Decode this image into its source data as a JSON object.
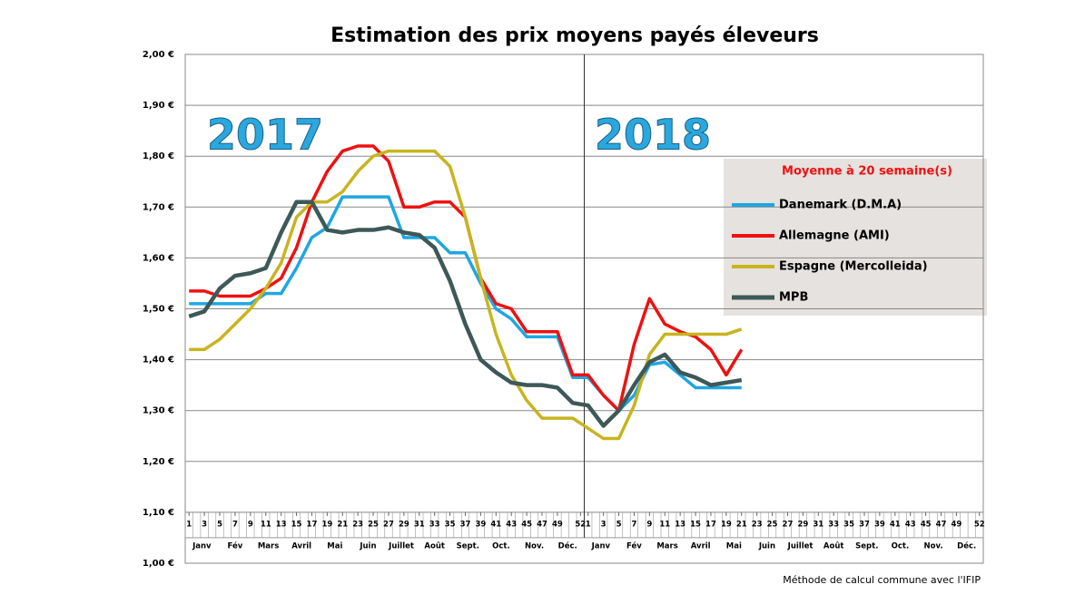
{
  "chart_data": {
    "type": "line",
    "title": "Estimation des prix moyens payés éleveurs",
    "annotations": [
      "2017",
      "2018"
    ],
    "legend_title": "Moyenne à  20 semaine(s)",
    "footnote": "Méthode de calcul commune avec l'IFIP",
    "months": [
      "Janv",
      "Fév",
      "Mars",
      "Avril",
      "Mai",
      "Juin",
      "Juillet",
      "Août",
      "Sept.",
      "Oct.",
      "Nov.",
      "Déc.",
      "Janv",
      "Fév",
      "Mars",
      "Avril",
      "Mai",
      "Juin",
      "Juillet",
      "Août",
      "Sept.",
      "Oct.",
      "Nov.",
      "Déc."
    ],
    "x": [
      1,
      3,
      5,
      7,
      9,
      11,
      13,
      15,
      17,
      19,
      21,
      23,
      25,
      27,
      29,
      31,
      33,
      35,
      37,
      39,
      41,
      43,
      45,
      47,
      49,
      51,
      53,
      55,
      57,
      59,
      61,
      63,
      65,
      67,
      69,
      71,
      73
    ],
    "series": [
      {
        "name": "Danemark (D.M.A)",
        "color": "#1ea7e1",
        "values": [
          1.51,
          1.51,
          1.51,
          1.51,
          1.51,
          1.53,
          1.53,
          1.58,
          1.64,
          1.66,
          1.72,
          1.72,
          1.72,
          1.72,
          1.64,
          1.64,
          1.64,
          1.61,
          1.61,
          1.55,
          1.5,
          1.48,
          1.445,
          1.445,
          1.445,
          1.365,
          1.365,
          1.33,
          1.3,
          1.33,
          1.39,
          1.395,
          1.37,
          1.345,
          1.345,
          1.345,
          1.345
        ]
      },
      {
        "name": "Allemagne (AMI)",
        "color": "#ee1111",
        "values": [
          1.535,
          1.535,
          1.525,
          1.525,
          1.525,
          1.54,
          1.56,
          1.62,
          1.71,
          1.77,
          1.81,
          1.82,
          1.82,
          1.79,
          1.7,
          1.7,
          1.71,
          1.71,
          1.68,
          1.56,
          1.51,
          1.5,
          1.455,
          1.455,
          1.455,
          1.37,
          1.37,
          1.33,
          1.3,
          1.43,
          1.52,
          1.47,
          1.455,
          1.445,
          1.42,
          1.37,
          1.42
        ]
      },
      {
        "name": "Espagne (Mercolleida)",
        "color": "#c8b41e",
        "values": [
          1.42,
          1.42,
          1.44,
          1.47,
          1.5,
          1.54,
          1.59,
          1.68,
          1.71,
          1.71,
          1.73,
          1.77,
          1.8,
          1.81,
          1.81,
          1.81,
          1.81,
          1.78,
          1.68,
          1.56,
          1.45,
          1.37,
          1.32,
          1.285,
          1.285,
          1.285,
          1.265,
          1.245,
          1.245,
          1.31,
          1.41,
          1.45,
          1.45,
          1.45,
          1.45,
          1.45,
          1.46
        ]
      },
      {
        "name": "MPB",
        "color": "#3e5858",
        "values": [
          1.485,
          1.495,
          1.54,
          1.565,
          1.57,
          1.58,
          1.65,
          1.71,
          1.71,
          1.655,
          1.65,
          1.655,
          1.655,
          1.66,
          1.65,
          1.645,
          1.62,
          1.555,
          1.47,
          1.4,
          1.375,
          1.355,
          1.35,
          1.35,
          1.345,
          1.315,
          1.31,
          1.27,
          1.3,
          1.35,
          1.395,
          1.41,
          1.375,
          1.365,
          1.35,
          1.355,
          1.36
        ]
      }
    ],
    "xlim": [
      0.5,
      104.5
    ],
    "xticks": [
      1,
      3,
      5,
      7,
      9,
      11,
      13,
      15,
      17,
      19,
      21,
      23,
      25,
      27,
      29,
      31,
      33,
      35,
      37,
      39,
      41,
      43,
      45,
      47,
      49,
      52,
      {
        "value": 53,
        "label": "1"
      },
      {
        "value": 55,
        "label": "3"
      },
      {
        "value": 57,
        "label": "5"
      },
      {
        "value": 59,
        "label": "7"
      },
      {
        "value": 61,
        "label": "9"
      },
      {
        "value": 63,
        "label": "11"
      },
      {
        "value": 65,
        "label": "13"
      },
      {
        "value": 67,
        "label": "15"
      },
      {
        "value": 69,
        "label": "17"
      },
      {
        "value": 71,
        "label": "19"
      },
      {
        "value": 73,
        "label": "21"
      },
      {
        "value": 75,
        "label": "23"
      },
      {
        "value": 77,
        "label": "25"
      },
      {
        "value": 79,
        "label": "27"
      },
      {
        "value": 81,
        "label": "29"
      },
      {
        "value": 83,
        "label": "31"
      },
      {
        "value": 85,
        "label": "33"
      },
      {
        "value": 87,
        "label": "35"
      },
      {
        "value": 89,
        "label": "37"
      },
      {
        "value": 91,
        "label": "39"
      },
      {
        "value": 93,
        "label": "41"
      },
      {
        "value": 95,
        "label": "43"
      },
      {
        "value": 97,
        "label": "45"
      },
      {
        "value": 99,
        "label": "47"
      },
      {
        "value": 101,
        "label": "49"
      },
      {
        "value": 104,
        "label": "52"
      }
    ],
    "ylim": [
      1.0,
      2.0
    ],
    "yticks": [
      {
        "value": 1.0,
        "label": "1,00 €"
      },
      {
        "value": 1.1,
        "label": "1,10 €"
      },
      {
        "value": 1.2,
        "label": "1,20 €"
      },
      {
        "value": 1.3,
        "label": "1,30 €"
      },
      {
        "value": 1.4,
        "label": "1,40 €"
      },
      {
        "value": 1.5,
        "label": "1,50 €"
      },
      {
        "value": 1.6,
        "label": "1,60 €"
      },
      {
        "value": 1.7,
        "label": "1,70 €"
      },
      {
        "value": 1.8,
        "label": "1,80 €"
      },
      {
        "value": 1.9,
        "label": "1,90 €"
      },
      {
        "value": 2.0,
        "label": "2,00 €"
      }
    ],
    "grid": true
  }
}
